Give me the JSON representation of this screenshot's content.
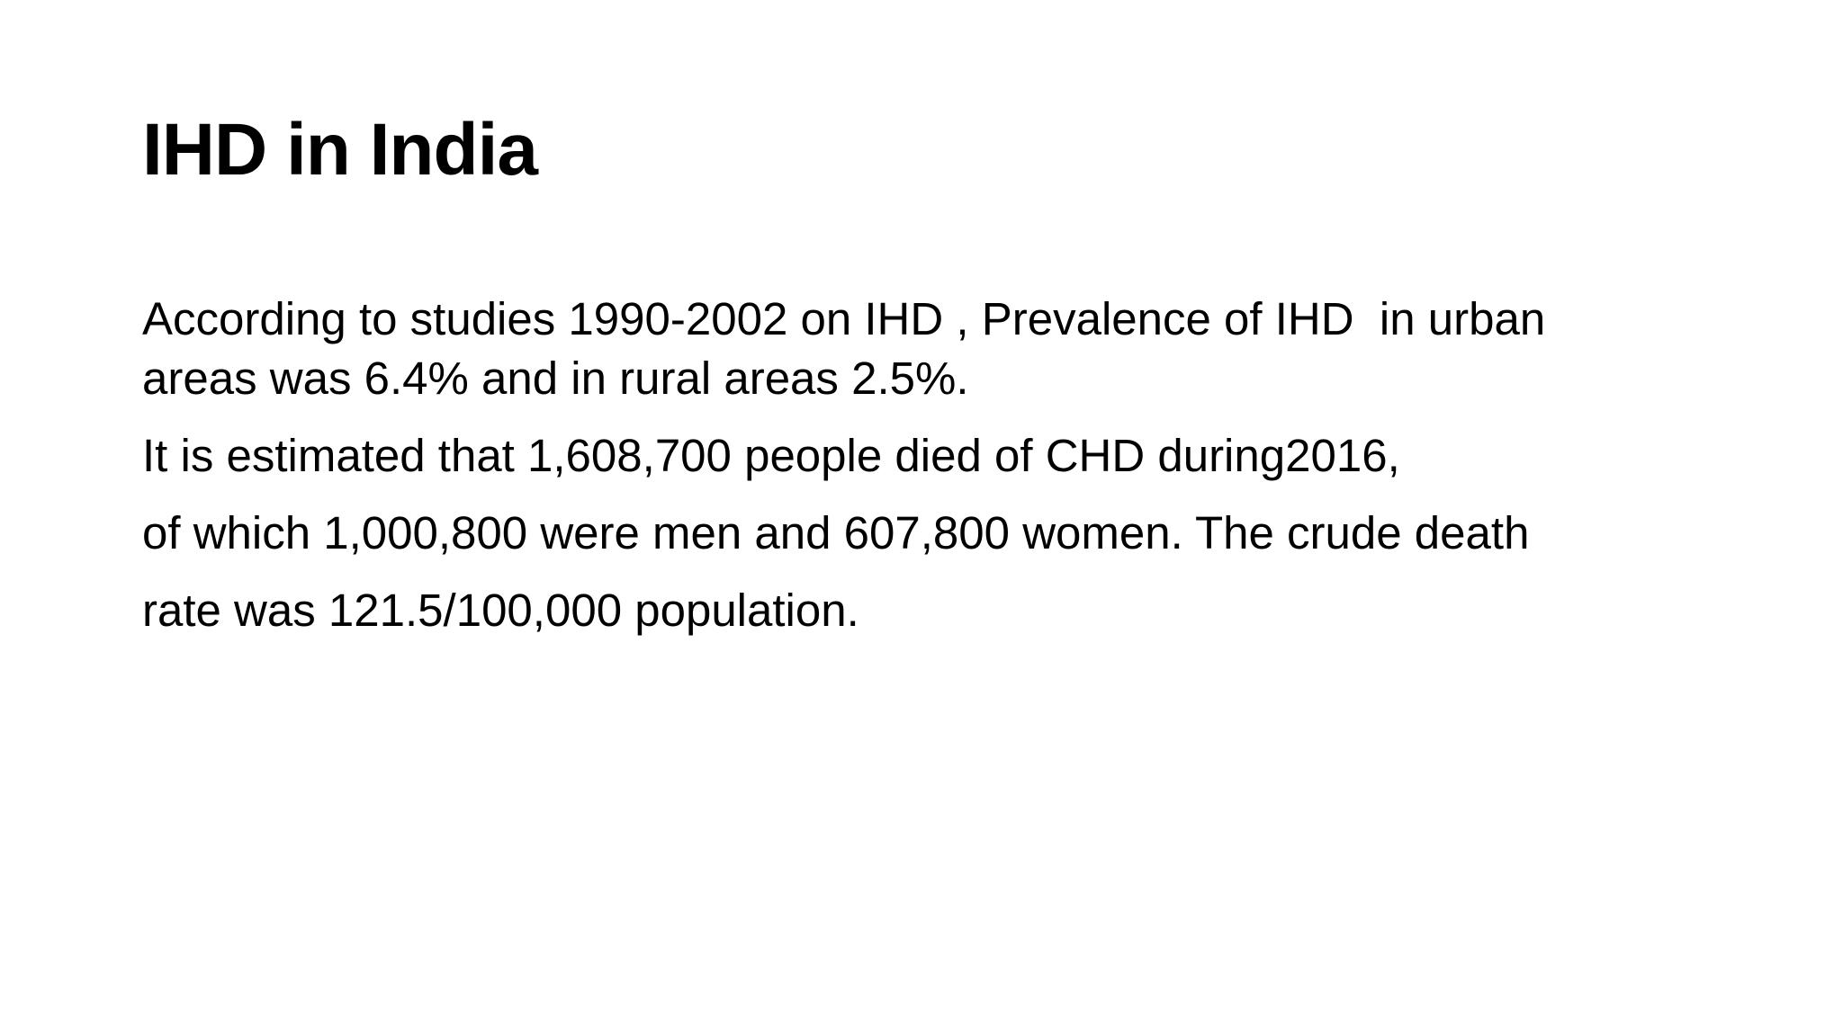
{
  "slide": {
    "title": "IHD in India",
    "paragraphs": [
      {
        "lines": [
          "According to studies 1990-2002 on IHD , Prevalence of IHD  in urban",
          "areas was 6.4% and in rural areas 2.5%."
        ]
      },
      {
        "lines": [
          "It is estimated that 1,608,700 people died of CHD during2016,"
        ]
      },
      {
        "lines": [
          "of which 1,000,800 were men and 607,800 women. The crude death"
        ]
      },
      {
        "lines": [
          "rate was 121.5/100,000 population."
        ]
      }
    ]
  }
}
